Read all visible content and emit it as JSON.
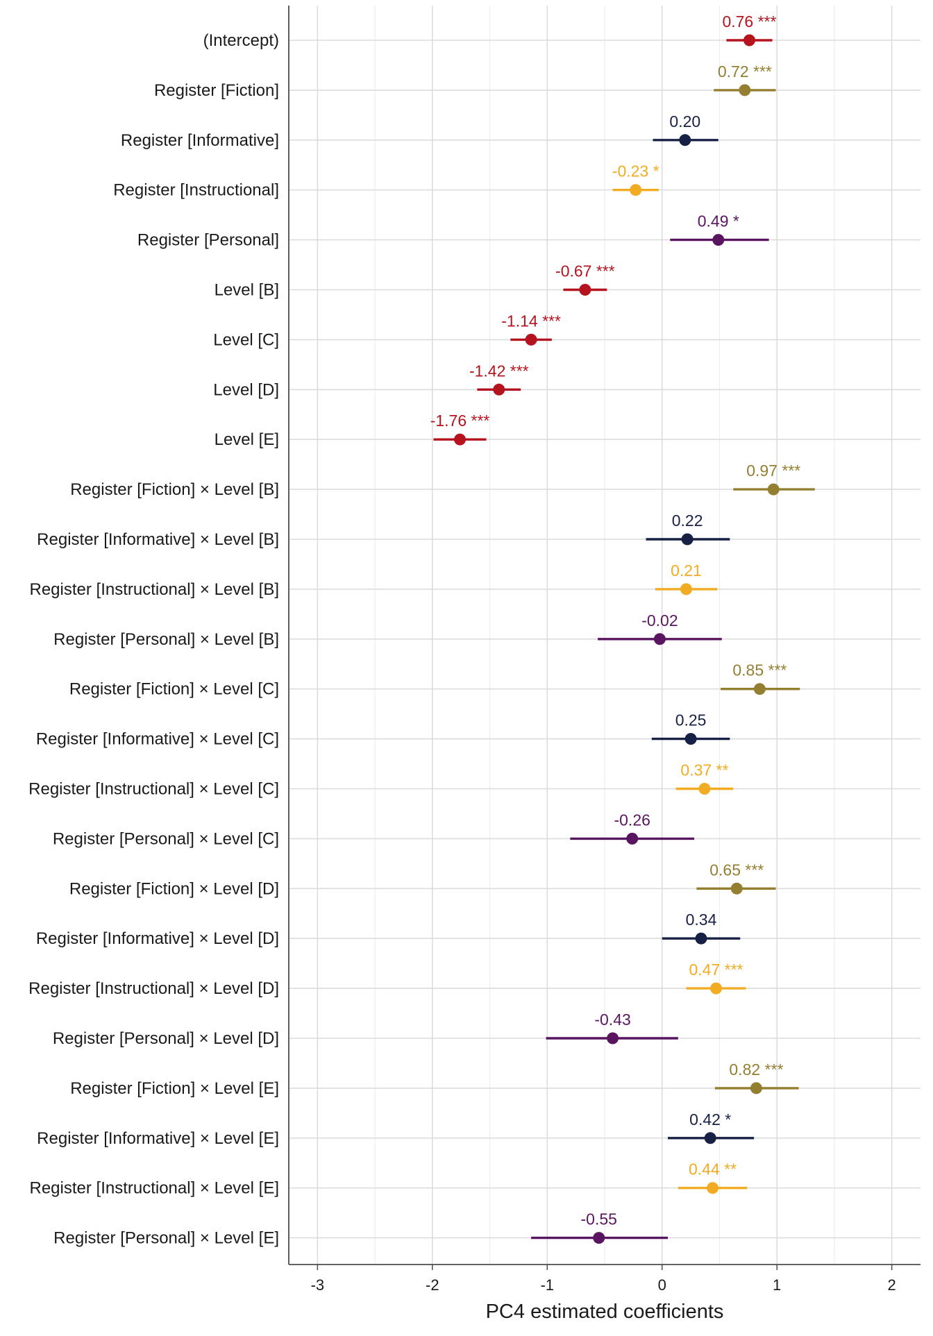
{
  "chart_data": {
    "type": "scatter",
    "subtype": "coefficient-plot",
    "title": "",
    "xlabel": "PC4 estimated coefficients",
    "ylabel": "",
    "xlim": [
      -3.25,
      2.25
    ],
    "x_ticks": [
      -3,
      -2,
      -1,
      0,
      1,
      2
    ],
    "x_tick_labels": [
      "-3",
      "-2",
      "-1",
      "0",
      "1",
      "2"
    ],
    "grid": true,
    "legend": "none",
    "colors": {
      "intercept_level": "#b5141e",
      "fiction": "#947e30",
      "informative": "#172146",
      "instructional": "#f2ac24",
      "personal": "#5a1561"
    },
    "terms": [
      {
        "label": "(Intercept)",
        "estimate": 0.76,
        "ci": [
          0.56,
          0.96
        ],
        "annotation": "0.76 ***",
        "group": "intercept_level"
      },
      {
        "label": "Register [Fiction]",
        "estimate": 0.72,
        "ci": [
          0.45,
          0.99
        ],
        "annotation": "0.72 ***",
        "group": "fiction"
      },
      {
        "label": "Register [Informative]",
        "estimate": 0.2,
        "ci": [
          -0.08,
          0.49
        ],
        "annotation": "0.20",
        "group": "informative"
      },
      {
        "label": "Register [Instructional]",
        "estimate": -0.23,
        "ci": [
          -0.43,
          -0.03
        ],
        "annotation": "-0.23 *",
        "group": "instructional"
      },
      {
        "label": "Register [Personal]",
        "estimate": 0.49,
        "ci": [
          0.07,
          0.93
        ],
        "annotation": "0.49 *",
        "group": "personal"
      },
      {
        "label": "Level [B]",
        "estimate": -0.67,
        "ci": [
          -0.86,
          -0.48
        ],
        "annotation": "-0.67 ***",
        "group": "intercept_level"
      },
      {
        "label": "Level [C]",
        "estimate": -1.14,
        "ci": [
          -1.32,
          -0.96
        ],
        "annotation": "-1.14 ***",
        "group": "intercept_level"
      },
      {
        "label": "Level [D]",
        "estimate": -1.42,
        "ci": [
          -1.61,
          -1.23
        ],
        "annotation": "-1.42 ***",
        "group": "intercept_level"
      },
      {
        "label": "Level [E]",
        "estimate": -1.76,
        "ci": [
          -1.99,
          -1.53
        ],
        "annotation": "-1.76 ***",
        "group": "intercept_level"
      },
      {
        "label": "Register [Fiction] × Level [B]",
        "estimate": 0.97,
        "ci": [
          0.62,
          1.33
        ],
        "annotation": "0.97 ***",
        "group": "fiction"
      },
      {
        "label": "Register [Informative] × Level [B]",
        "estimate": 0.22,
        "ci": [
          -0.14,
          0.59
        ],
        "annotation": "0.22",
        "group": "informative"
      },
      {
        "label": "Register [Instructional] × Level [B]",
        "estimate": 0.21,
        "ci": [
          -0.06,
          0.48
        ],
        "annotation": "0.21",
        "group": "instructional"
      },
      {
        "label": "Register [Personal] × Level [B]",
        "estimate": -0.02,
        "ci": [
          -0.56,
          0.52
        ],
        "annotation": "-0.02",
        "group": "personal"
      },
      {
        "label": "Register [Fiction] × Level [C]",
        "estimate": 0.85,
        "ci": [
          0.51,
          1.2
        ],
        "annotation": "0.85 ***",
        "group": "fiction"
      },
      {
        "label": "Register [Informative] × Level [C]",
        "estimate": 0.25,
        "ci": [
          -0.09,
          0.59
        ],
        "annotation": "0.25",
        "group": "informative"
      },
      {
        "label": "Register [Instructional] × Level [C]",
        "estimate": 0.37,
        "ci": [
          0.12,
          0.62
        ],
        "annotation": "0.37 **",
        "group": "instructional"
      },
      {
        "label": "Register [Personal] × Level [C]",
        "estimate": -0.26,
        "ci": [
          -0.8,
          0.28
        ],
        "annotation": "-0.26",
        "group": "personal"
      },
      {
        "label": "Register [Fiction] × Level [D]",
        "estimate": 0.65,
        "ci": [
          0.3,
          0.99
        ],
        "annotation": "0.65 ***",
        "group": "fiction"
      },
      {
        "label": "Register [Informative] × Level [D]",
        "estimate": 0.34,
        "ci": [
          0.0,
          0.68
        ],
        "annotation": "0.34",
        "group": "informative"
      },
      {
        "label": "Register [Instructional] × Level [D]",
        "estimate": 0.47,
        "ci": [
          0.21,
          0.73
        ],
        "annotation": "0.47 ***",
        "group": "instructional"
      },
      {
        "label": "Register [Personal] × Level [D]",
        "estimate": -0.43,
        "ci": [
          -1.01,
          0.14
        ],
        "annotation": "-0.43",
        "group": "personal"
      },
      {
        "label": "Register [Fiction] × Level [E]",
        "estimate": 0.82,
        "ci": [
          0.46,
          1.19
        ],
        "annotation": "0.82 ***",
        "group": "fiction"
      },
      {
        "label": "Register [Informative] × Level [E]",
        "estimate": 0.42,
        "ci": [
          0.05,
          0.8
        ],
        "annotation": "0.42 *",
        "group": "informative"
      },
      {
        "label": "Register [Instructional] × Level [E]",
        "estimate": 0.44,
        "ci": [
          0.14,
          0.74
        ],
        "annotation": "0.44 **",
        "group": "instructional"
      },
      {
        "label": "Register [Personal] × Level [E]",
        "estimate": -0.55,
        "ci": [
          -1.14,
          0.05
        ],
        "annotation": "-0.55",
        "group": "personal"
      }
    ]
  }
}
